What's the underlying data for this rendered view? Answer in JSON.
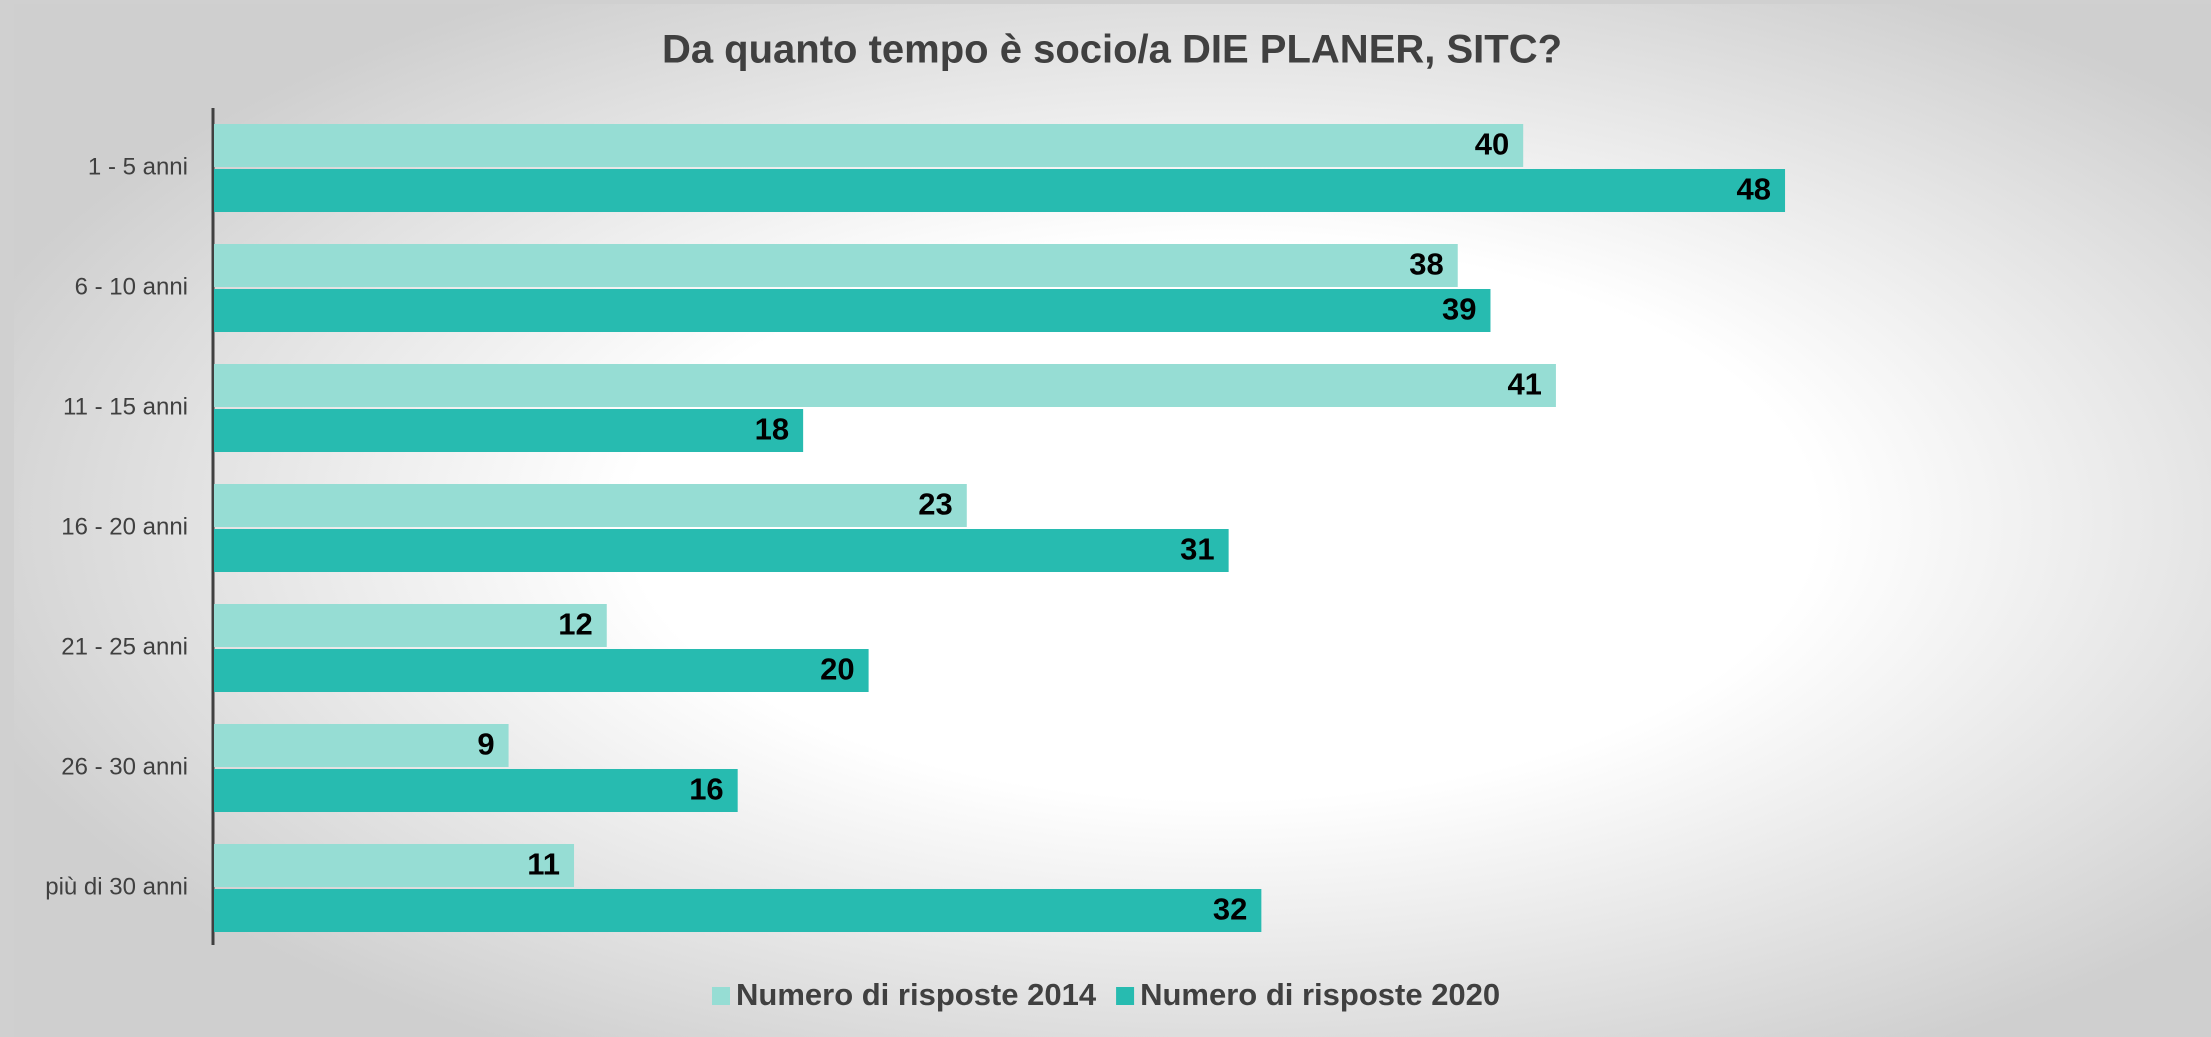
{
  "chart_data": {
    "type": "hbar",
    "title": "Da quanto tempo è socio/a DIE PLANER, SITC?",
    "categories": [
      "1 - 5 anni",
      "6 - 10 anni",
      "11 - 15 anni",
      "16 - 20 anni",
      "21 - 25 anni",
      "26 - 30 anni",
      "più di 30 anni"
    ],
    "series": [
      {
        "name": "Numero di risposte 2014",
        "color": "#96ddd4",
        "values": [
          40,
          38,
          41,
          23,
          12,
          9,
          11
        ]
      },
      {
        "name": "Numero di risposte 2020",
        "color": "#27bbb0",
        "values": [
          48,
          39,
          18,
          31,
          20,
          16,
          32
        ]
      }
    ],
    "legend": "bottom"
  }
}
